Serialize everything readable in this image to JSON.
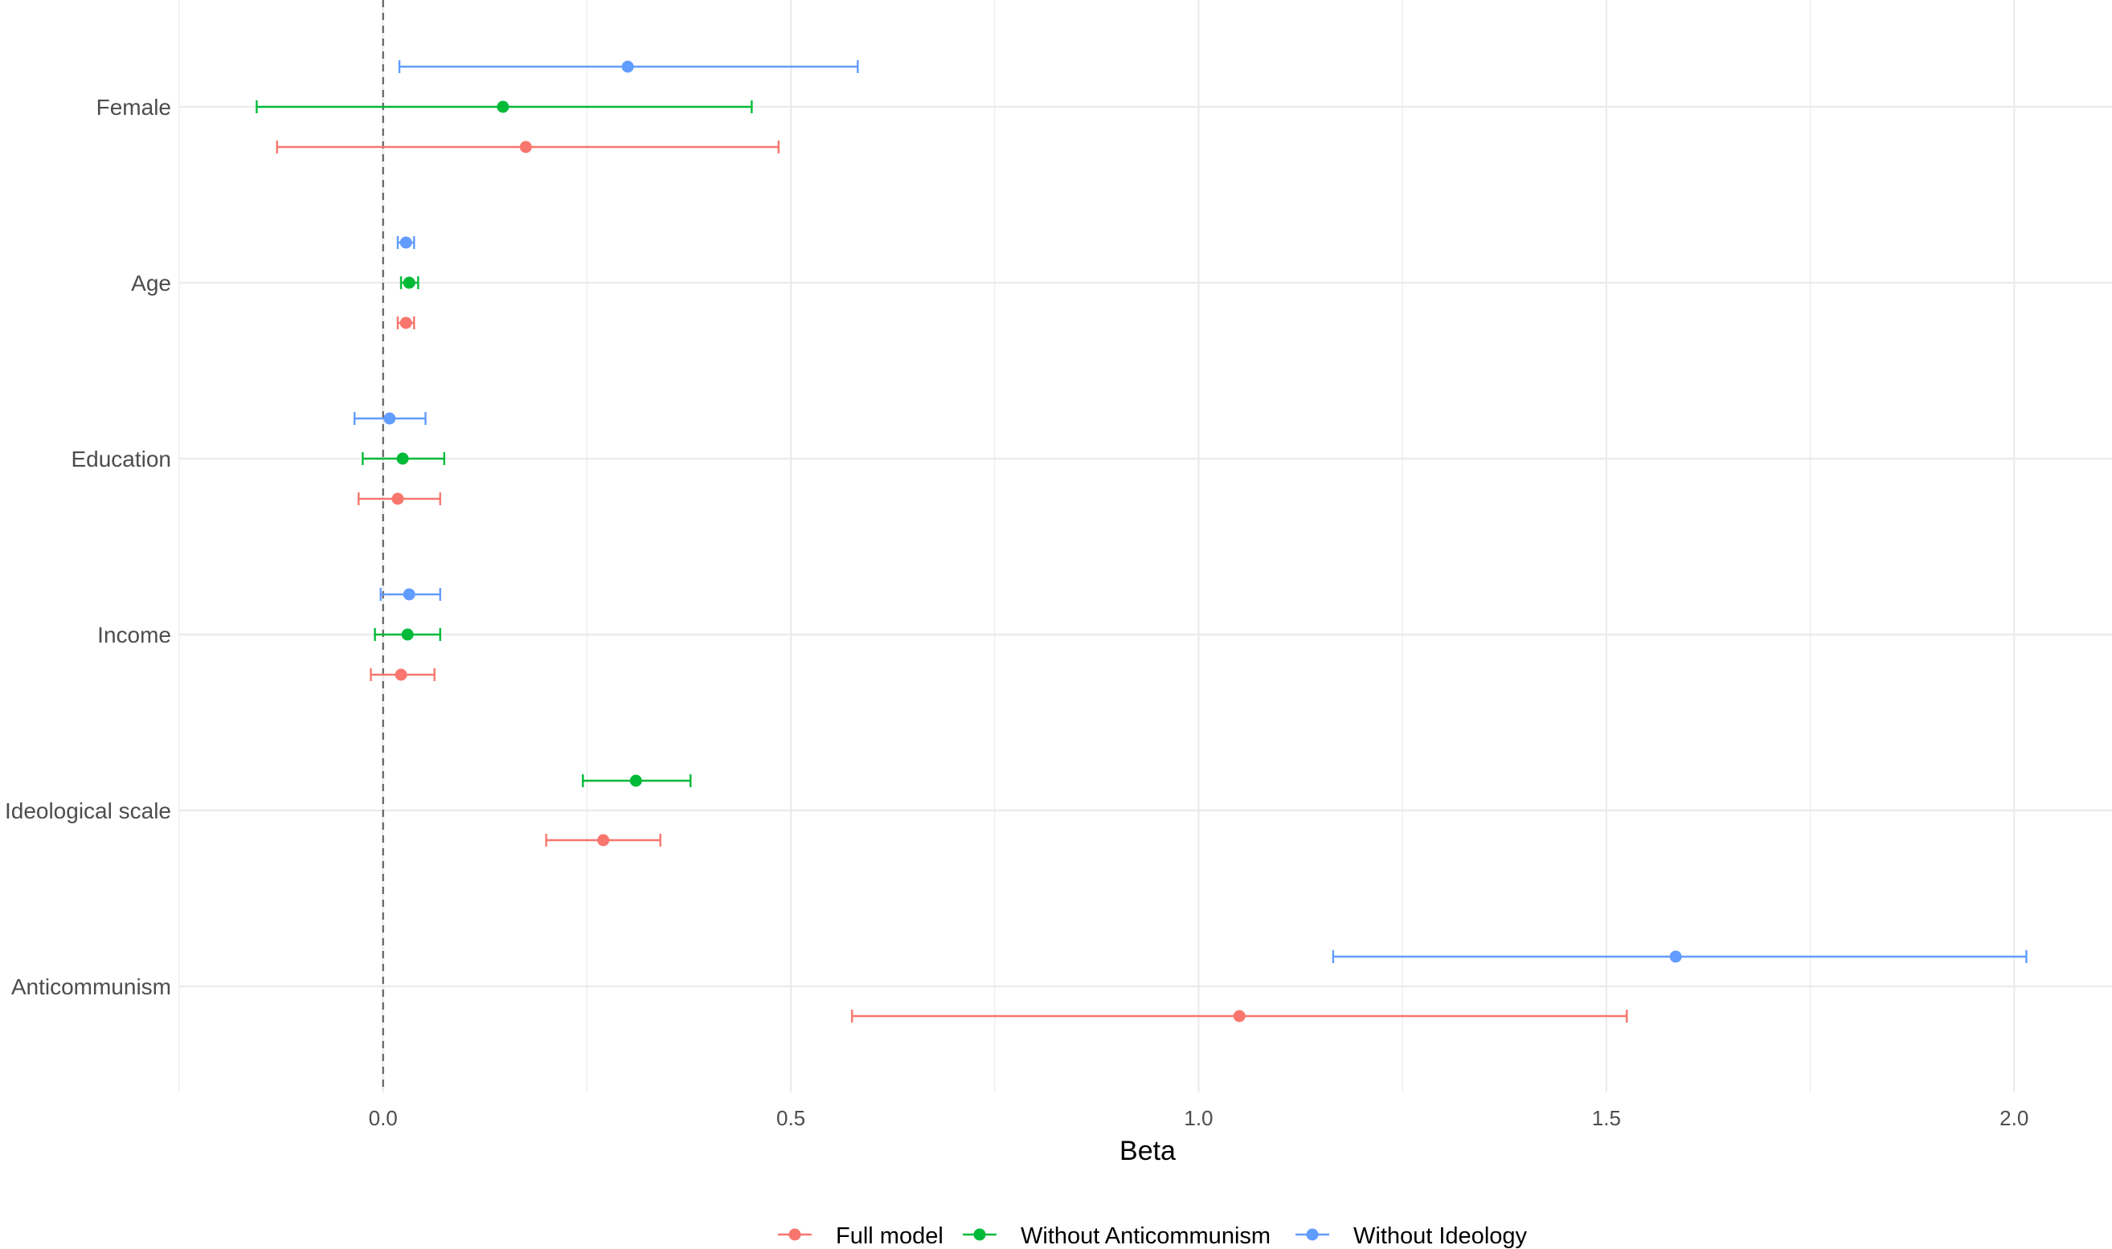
{
  "chart_data": {
    "type": "scatter",
    "subtype": "coefficient-plot",
    "title": "",
    "xlabel": "Beta",
    "ylabel": "",
    "xlim": [
      -0.25,
      2.12
    ],
    "xticks": [
      0.0,
      0.5,
      1.0,
      1.5,
      2.0
    ],
    "xtick_labels": [
      "0.0",
      "0.5",
      "1.0",
      "1.5",
      "2.0"
    ],
    "reference_line": 0,
    "grid": true,
    "legend_position": "bottom",
    "categories": [
      "Female",
      "Age",
      "Education",
      "Income",
      "Ideological scale",
      "Anticommunism"
    ],
    "series": [
      {
        "name": "Full model",
        "color": "#F8766D",
        "points": [
          {
            "category": "Female",
            "beta": 0.175,
            "lower": -0.13,
            "upper": 0.485
          },
          {
            "category": "Age",
            "beta": 0.028,
            "lower": 0.018,
            "upper": 0.038
          },
          {
            "category": "Education",
            "beta": 0.018,
            "lower": -0.03,
            "upper": 0.07
          },
          {
            "category": "Income",
            "beta": 0.022,
            "lower": -0.015,
            "upper": 0.063
          },
          {
            "category": "Ideological scale",
            "beta": 0.27,
            "lower": 0.2,
            "upper": 0.34
          },
          {
            "category": "Anticommunism",
            "beta": 1.05,
            "lower": 0.575,
            "upper": 1.525
          }
        ]
      },
      {
        "name": "Without Anticommunism",
        "color": "#00BA38",
        "points": [
          {
            "category": "Female",
            "beta": 0.147,
            "lower": -0.155,
            "upper": 0.452
          },
          {
            "category": "Age",
            "beta": 0.032,
            "lower": 0.022,
            "upper": 0.043
          },
          {
            "category": "Education",
            "beta": 0.024,
            "lower": -0.025,
            "upper": 0.075
          },
          {
            "category": "Income",
            "beta": 0.03,
            "lower": -0.01,
            "upper": 0.07
          },
          {
            "category": "Ideological scale",
            "beta": 0.31,
            "lower": 0.245,
            "upper": 0.377
          },
          {
            "category": "Anticommunism",
            "beta": null,
            "lower": null,
            "upper": null
          }
        ]
      },
      {
        "name": "Without Ideology",
        "color": "#619CFF",
        "points": [
          {
            "category": "Female",
            "beta": 0.3,
            "lower": 0.02,
            "upper": 0.582
          },
          {
            "category": "Age",
            "beta": 0.028,
            "lower": 0.018,
            "upper": 0.038
          },
          {
            "category": "Education",
            "beta": 0.008,
            "lower": -0.035,
            "upper": 0.052
          },
          {
            "category": "Income",
            "beta": 0.032,
            "lower": -0.003,
            "upper": 0.07
          },
          {
            "category": "Ideological scale",
            "beta": null,
            "lower": null,
            "upper": null
          },
          {
            "category": "Anticommunism",
            "beta": 1.585,
            "lower": 1.165,
            "upper": 2.015
          }
        ]
      }
    ]
  }
}
